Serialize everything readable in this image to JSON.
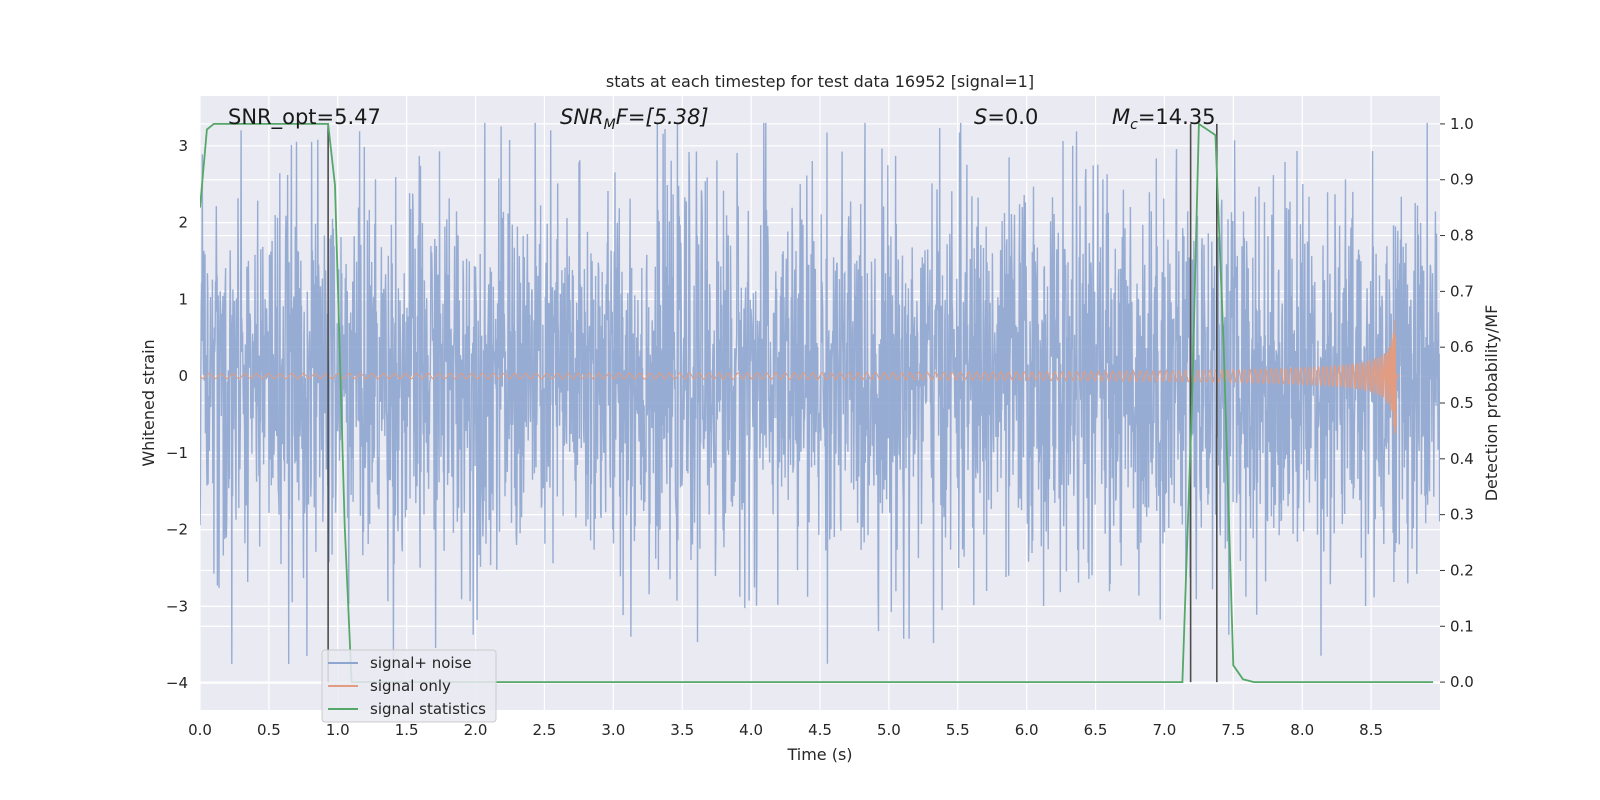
{
  "chart_data": {
    "type": "line",
    "title": "stats at each timestep for test data 16952 [signal=1]",
    "xlabel": "Time (s)",
    "ylabel": "Whitened strain",
    "ylabel_right": "Detection probability/MF",
    "xlim": [
      0.0,
      9.0
    ],
    "ylim": [
      -4.35,
      3.65
    ],
    "ylim_right": [
      -0.05,
      1.05
    ],
    "x_ticks": [
      "0.0",
      "0.5",
      "1.0",
      "1.5",
      "2.0",
      "2.5",
      "3.0",
      "3.5",
      "4.0",
      "4.5",
      "5.0",
      "5.5",
      "6.0",
      "6.5",
      "7.0",
      "7.5",
      "8.0",
      "8.5"
    ],
    "y_ticks": [
      "3",
      "2",
      "1",
      "0",
      "−1",
      "−2",
      "−3",
      "−4"
    ],
    "y_ticks_right": [
      "1.0",
      "0.9",
      "0.8",
      "0.7",
      "0.6",
      "0.5",
      "0.4",
      "0.3",
      "0.2",
      "0.1",
      "0.0"
    ],
    "grid": true,
    "legend_position": "lower-left",
    "colors": {
      "noise": "#8ea5cf",
      "signal": "#e19c82",
      "stats": "#55a868",
      "markers": "#4d4d4d",
      "plot_bg": "#eaeaf2"
    },
    "annotations": {
      "snr_opt": "SNR_opt=5.47",
      "snr_mf_main": "SNR",
      "snr_mf_sub": "M",
      "snr_mf_rest": "F=[5.38]",
      "s_main": "S",
      "s_rest": "=0.0",
      "mc_main": "M",
      "mc_sub": "c",
      "mc_rest": "=14.35"
    },
    "legend": {
      "noise": "signal+ noise",
      "signal": "signal only",
      "stats": "signal statistics"
    },
    "series": [
      {
        "name": "signal+ noise",
        "description_kind": "noise",
        "x_range": [
          0.0,
          9.0
        ],
        "amplitude_envelope": 2.0,
        "min_value": -3.75,
        "max_value": 3.3
      },
      {
        "name": "signal only",
        "description_kind": "chirp",
        "x_range": [
          0.0,
          8.7
        ],
        "merger_time": 8.68,
        "peak_value": 1.1,
        "trough_value": -0.75
      },
      {
        "name": "signal statistics",
        "axis": "right",
        "x": [
          0.0,
          0.05,
          0.1,
          0.5,
          0.93,
          0.98,
          1.05,
          1.1,
          7.13,
          7.2,
          7.25,
          7.37,
          7.43,
          7.5,
          7.57,
          7.65,
          8.95
        ],
        "y": [
          0.85,
          0.99,
          1.0,
          1.0,
          1.0,
          0.89,
          0.28,
          0.0,
          0.0,
          0.5,
          1.0,
          0.98,
          0.6,
          0.03,
          0.005,
          0.0,
          0.0
        ]
      }
    ],
    "vertical_markers_x": [
      0.93,
      7.19,
      7.38
    ]
  }
}
